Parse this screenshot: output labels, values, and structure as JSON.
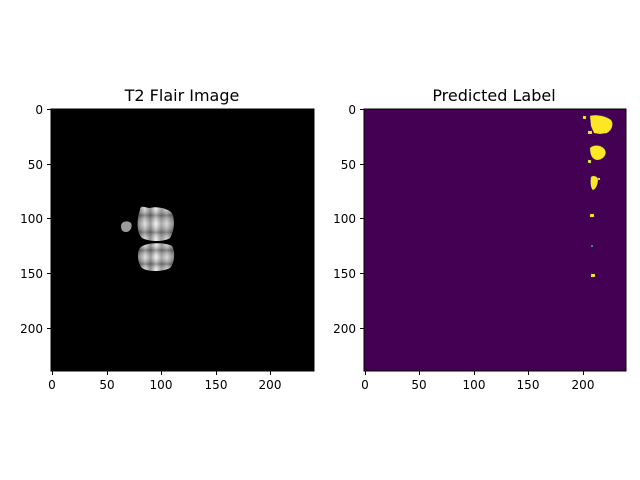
{
  "panels": [
    {
      "title": "T2 Flair Image",
      "x_ticks": [
        "0",
        "50",
        "100",
        "150",
        "200"
      ],
      "y_ticks": [
        "0",
        "50",
        "100",
        "150",
        "200"
      ],
      "background_color": "#000000",
      "colormap": "gray"
    },
    {
      "title": "Predicted Label",
      "x_ticks": [
        "0",
        "50",
        "100",
        "150",
        "200"
      ],
      "y_ticks": [
        "0",
        "50",
        "100",
        "150",
        "200"
      ],
      "background_color": "#440154",
      "label_color": "#fde725",
      "edge_color": "#21918c",
      "colormap": "viridis"
    }
  ],
  "image_extent": [
    0,
    240
  ]
}
